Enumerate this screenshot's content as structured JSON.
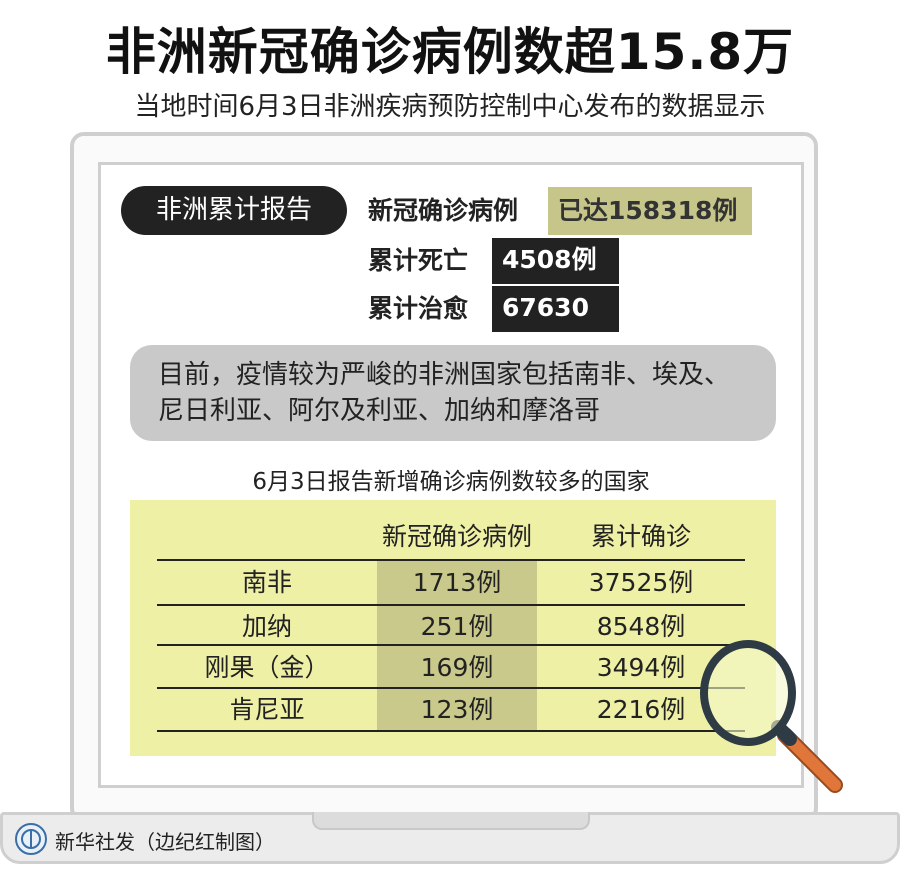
{
  "title": "非洲新冠确诊病例数超15.8万",
  "subtitle": "当地时间6月3日非洲疾病预防控制中心发布的数据显示",
  "summary": {
    "badge": "非洲累计报告",
    "confirmed_label": "新冠确诊病例",
    "confirmed_value": "已达158318例",
    "deaths_label": "累计死亡",
    "deaths_value": "4508例",
    "recovered_label": "累计治愈",
    "recovered_value": "67630例"
  },
  "note": "目前，疫情较为严峻的非洲国家包括南非、埃及、尼日利亚、阿尔及利亚、加纳和摩洛哥",
  "table": {
    "title": "6月3日报告新增确诊病例数较多的国家",
    "headers": [
      "",
      "新冠确诊病例",
      "累计确诊"
    ],
    "rows": [
      [
        "南非",
        "1713例",
        "37525例"
      ],
      [
        "加纳",
        "251例",
        "8548例"
      ],
      [
        "刚果（金）",
        "169例",
        "3494例"
      ],
      [
        "肯尼亚",
        "123例",
        "2216例"
      ]
    ]
  },
  "footer": "新华社发（边纪红制图）",
  "colors": {
    "khaki": "#c6c68b",
    "table_bg": "#eef0a6",
    "dark": "#222222",
    "magnifier_handle": "#e0763a"
  }
}
